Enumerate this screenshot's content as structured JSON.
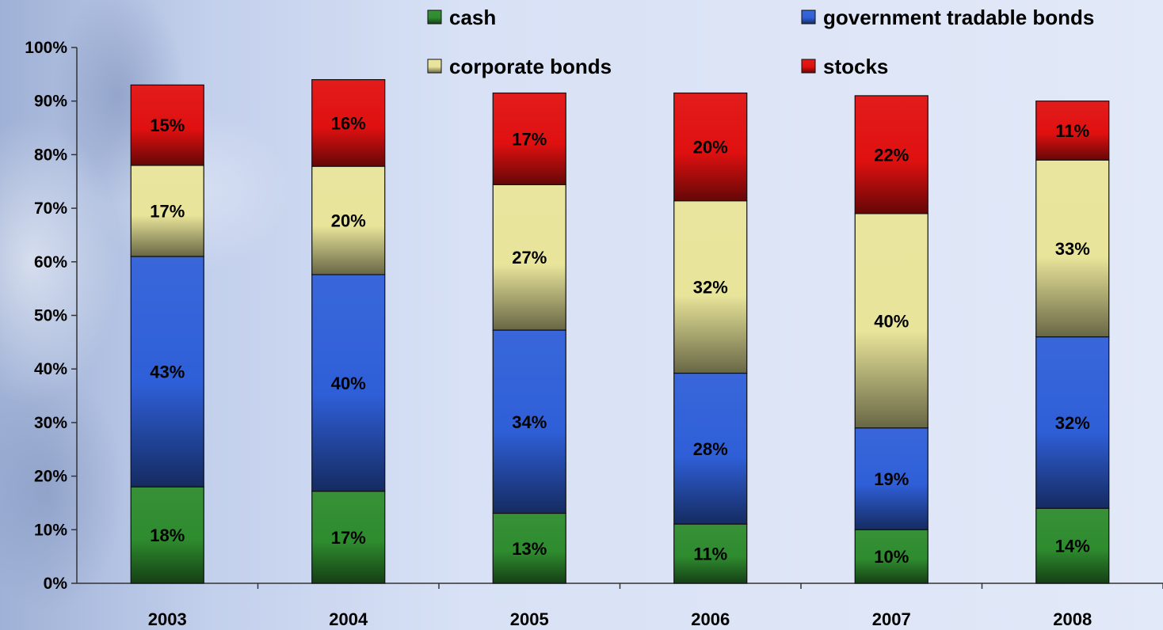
{
  "chart_data": {
    "type": "bar",
    "stacked": true,
    "categories": [
      "2003",
      "2004",
      "2005",
      "2006",
      "2007",
      "2008"
    ],
    "series": [
      {
        "name": "cash",
        "color": "#2e8b2e",
        "values": [
          18,
          17,
          13,
          11,
          10,
          14
        ],
        "labels": [
          "18%",
          "17%",
          "13%",
          "11%",
          "10%",
          "14%"
        ]
      },
      {
        "name": "government tradable bonds",
        "color": "#2f5fd8",
        "values": [
          43,
          40,
          34,
          28,
          19,
          32
        ],
        "labels": [
          "43%",
          "40%",
          "34%",
          "28%",
          "19%",
          "32%"
        ]
      },
      {
        "name": "corporate bonds",
        "color": "#e8e49a",
        "values": [
          17,
          20,
          27,
          32,
          40,
          33
        ],
        "labels": [
          "17%",
          "20%",
          "27%",
          "32%",
          "40%",
          "33%"
        ]
      },
      {
        "name": "stocks",
        "color": "#e01010",
        "values": [
          15,
          16,
          17,
          20,
          22,
          11
        ],
        "labels": [
          "15%",
          "16%",
          "17%",
          "20%",
          "22%",
          "11%"
        ]
      }
    ],
    "stack_tops": [
      93,
      94,
      91.5,
      91.5,
      91,
      90
    ],
    "ylim": [
      0,
      100
    ],
    "yticks": [
      "0%",
      "10%",
      "20%",
      "30%",
      "40%",
      "50%",
      "60%",
      "70%",
      "80%",
      "90%",
      "100%"
    ],
    "legend_position": "top",
    "grid": false,
    "title": "",
    "xlabel": "",
    "ylabel": ""
  }
}
